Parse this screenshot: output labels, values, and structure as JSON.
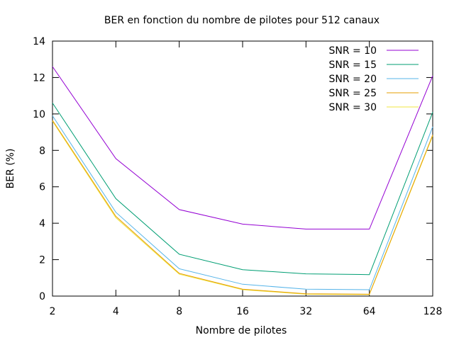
{
  "chart_data": {
    "type": "line",
    "title": "BER en fonction du nombre de pilotes pour 512 canaux",
    "xlabel": "Nombre de pilotes",
    "ylabel": "BER (%)",
    "x_scale": "log2",
    "categories": [
      "2",
      "4",
      "8",
      "16",
      "32",
      "64",
      "128"
    ],
    "ylim": [
      0,
      14
    ],
    "yticks": [
      "0",
      "2",
      "4",
      "6",
      "8",
      "10",
      "12",
      "14"
    ],
    "grid": false,
    "legend_position": "top-right",
    "series": [
      {
        "name": "SNR = 10",
        "color": "#9400d3",
        "values": [
          12.6,
          7.55,
          4.75,
          3.95,
          3.68,
          3.68,
          12.1
        ]
      },
      {
        "name": "SNR = 15",
        "color": "#009e73",
        "values": [
          10.6,
          5.35,
          2.3,
          1.45,
          1.22,
          1.18,
          10.1
        ]
      },
      {
        "name": "SNR = 20",
        "color": "#56b4e9",
        "values": [
          9.9,
          4.6,
          1.5,
          0.65,
          0.38,
          0.35,
          9.3
        ]
      },
      {
        "name": "SNR = 25",
        "color": "#e69f00",
        "values": [
          9.65,
          4.38,
          1.25,
          0.38,
          0.13,
          0.1,
          8.85
        ]
      },
      {
        "name": "SNR = 30",
        "color": "#f0e442",
        "values": [
          9.6,
          4.3,
          1.2,
          0.35,
          0.1,
          0.08,
          8.8
        ]
      }
    ]
  }
}
